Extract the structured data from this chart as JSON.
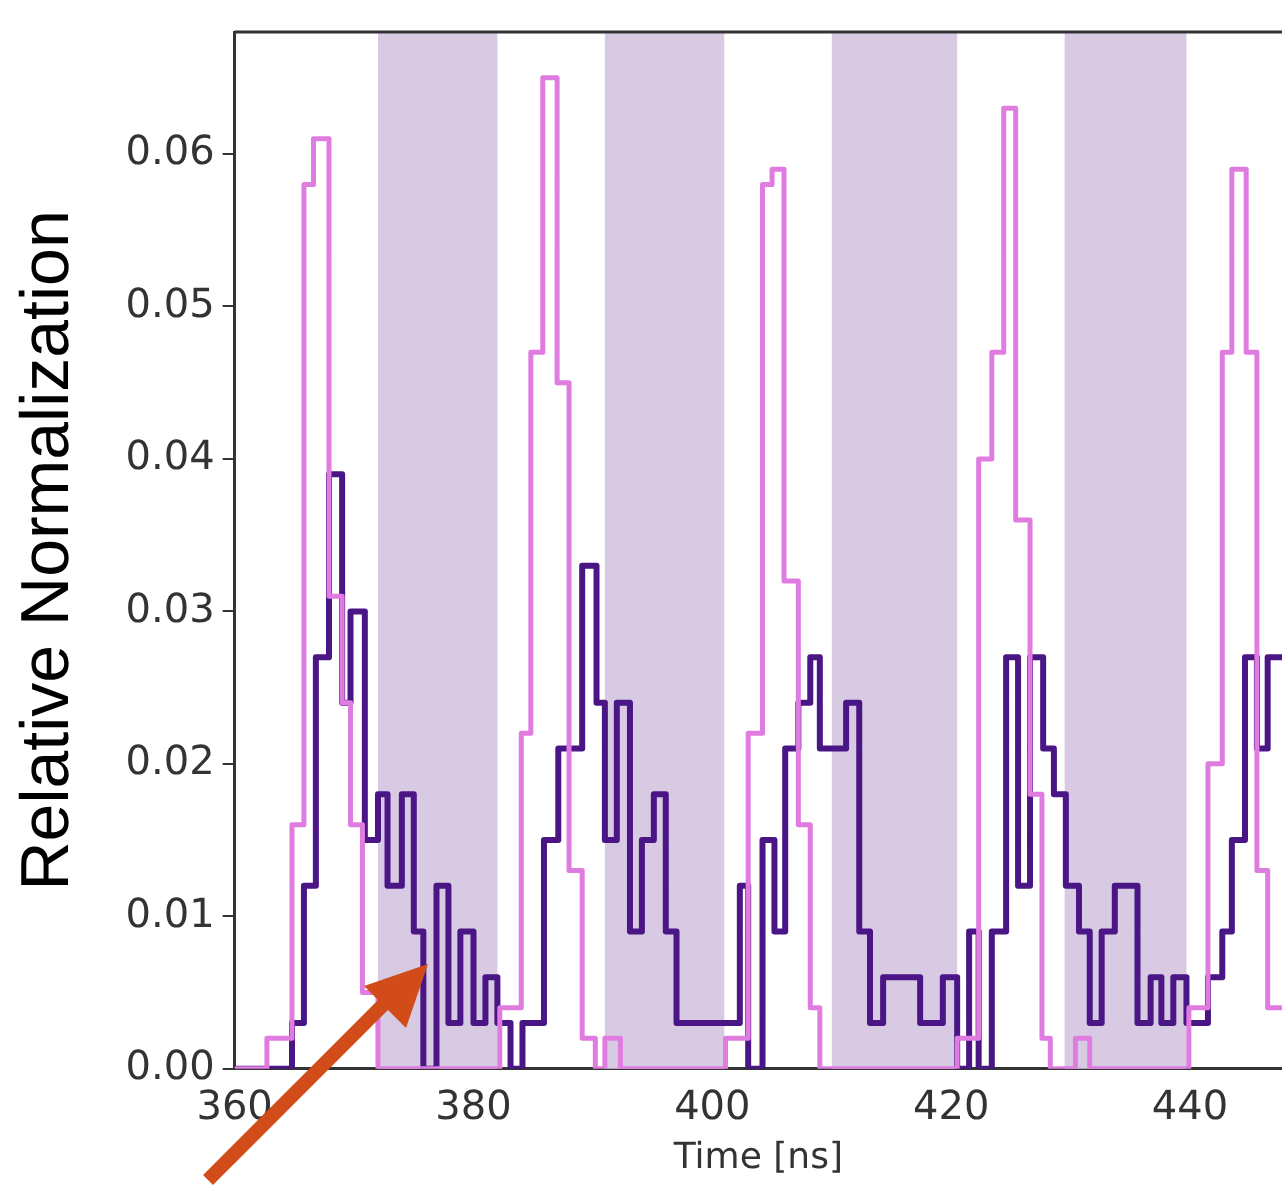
{
  "chart_data": {
    "type": "step",
    "xlabel": "Time [ns]",
    "ylabel": "Relative Normalization",
    "xlim": [
      360,
      447.7
    ],
    "xticks": [
      360,
      380,
      400,
      420,
      440
    ],
    "ylim": [
      0,
      0.068
    ],
    "yticks": [
      {
        "value": 0,
        "label": "0.00"
      },
      0.01,
      0.02,
      0.03,
      0.04,
      0.05,
      0.06
    ],
    "grid": false,
    "legend": false,
    "marker": "none",
    "line_style": "solid",
    "bands": [
      {
        "axis": "x",
        "from": 372,
        "to": 382,
        "color": "#d9cae4"
      },
      {
        "axis": "x",
        "from": 391,
        "to": 401,
        "color": "#d9cae4"
      },
      {
        "axis": "x",
        "from": 410,
        "to": 420.5,
        "color": "#d9cae4"
      },
      {
        "axis": "x",
        "from": 429.5,
        "to": 439.7,
        "color": "#d9cae4"
      }
    ],
    "series": [
      {
        "color": "#e07ce0",
        "x": [
          360,
          362.7,
          364.8,
          365.8,
          366.6,
          367.9,
          369,
          369.7,
          370.7,
          372,
          382.2,
          384,
          384.8,
          385.8,
          387,
          388,
          389.1,
          390.2,
          391,
          392.3,
          401.1,
          403,
          404.2,
          405,
          406,
          407.2,
          408.2,
          409,
          420.5,
          422.3,
          423.4,
          424.4,
          425.4,
          426.6,
          427.6,
          428.3,
          430.4,
          431.6,
          439.9,
          441.5,
          442.7,
          443.5,
          444.7,
          445.6,
          446.5,
          447.7
        ],
        "values": [
          0,
          0.002,
          0.016,
          0.058,
          0.061,
          0.031,
          0.024,
          0.016,
          0.005,
          0,
          0.004,
          0.022,
          0.047,
          0.065,
          0.045,
          0.013,
          0.002,
          0,
          0.002,
          0,
          0.002,
          0.022,
          0.058,
          0.059,
          0.032,
          0.016,
          0.004,
          0,
          0.002,
          0.04,
          0.047,
          0.063,
          0.036,
          0.018,
          0.002,
          0,
          0.002,
          0,
          0.004,
          0.02,
          0.047,
          0.059,
          0.047,
          0.013,
          0.004,
          0.004
        ]
      },
      {
        "color": "#4a1585",
        "x": [
          360,
          364.8,
          365.8,
          366.8,
          367.9,
          369,
          369.7,
          370.9,
          372,
          372.8,
          374,
          375,
          375.8,
          376.9,
          377.9,
          378.9,
          380,
          381,
          382,
          383.1,
          384.1,
          385.9,
          387.1,
          389.1,
          390.3,
          391,
          392,
          393.1,
          394.1,
          395.1,
          396.1,
          397,
          402.3,
          403,
          404.2,
          405.2,
          406.1,
          407.2,
          408.2,
          409,
          411.2,
          412.3,
          413.2,
          414.3,
          417.4,
          419.3,
          420.5,
          421.5,
          422.3,
          423.4,
          424.6,
          425.6,
          426.6,
          427.7,
          428.6,
          429.6,
          430.7,
          431.6,
          432.6,
          433.7,
          435.6,
          436.7,
          437.6,
          438.6,
          439.7,
          441.5,
          442.7,
          443.5,
          444.6,
          445.6,
          446.5,
          447.7
        ],
        "values": [
          0,
          0.003,
          0.012,
          0.027,
          0.039,
          0.024,
          0.03,
          0.015,
          0.018,
          0.012,
          0.018,
          0.009,
          0,
          0.012,
          0.003,
          0.009,
          0.003,
          0.006,
          0.003,
          0,
          0.003,
          0.015,
          0.021,
          0.033,
          0.024,
          0.015,
          0.024,
          0.009,
          0.015,
          0.018,
          0.009,
          0.003,
          0.012,
          0,
          0.015,
          0.009,
          0.021,
          0.024,
          0.027,
          0.021,
          0.024,
          0.009,
          0.003,
          0.006,
          0.003,
          0.006,
          0,
          0.009,
          0,
          0.009,
          0.027,
          0.012,
          0.027,
          0.021,
          0.018,
          0.012,
          0.009,
          0.003,
          0.009,
          0.012,
          0.003,
          0.006,
          0.003,
          0.006,
          0.003,
          0.006,
          0.009,
          0.015,
          0.027,
          0.021,
          0.027,
          0.027
        ]
      }
    ]
  }
}
